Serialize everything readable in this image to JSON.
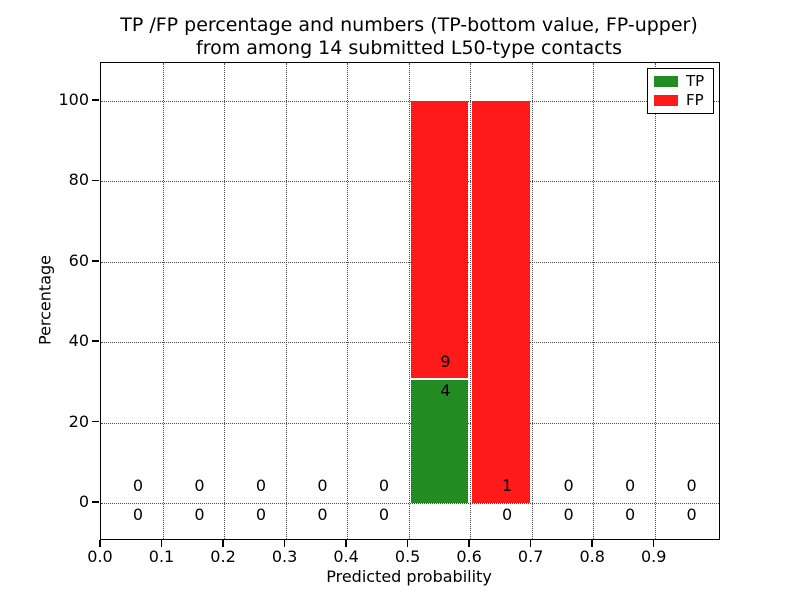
{
  "figure": {
    "title_line1": "TP /FP percentage and numbers (TP-bottom value, FP-upper)",
    "title_line2": "from among 14 submitted L50-type contacts",
    "xlabel": "Predicted probability",
    "ylabel": "Percentage"
  },
  "chart_data": {
    "type": "bar",
    "stacked": true,
    "title": "TP /FP percentage and numbers (TP-bottom value, FP-upper) from among 14 submitted L50-type contacts",
    "xlabel": "Predicted probability",
    "ylabel": "Percentage",
    "total_contacts": 14,
    "xlim": [
      0,
      1.0045
    ],
    "ylim": [
      -9,
      109.5
    ],
    "grid": "dotted",
    "legend_position": "upper right",
    "xticks": {
      "values": [
        0.0,
        0.1,
        0.2,
        0.3,
        0.4,
        0.5,
        0.6,
        0.7,
        0.8,
        0.9
      ],
      "labels": [
        "0.0",
        "0.1",
        "0.2",
        "0.3",
        "0.4",
        "0.5",
        "0.6",
        "0.7",
        "0.8",
        "0.9"
      ]
    },
    "yticks": {
      "values": [
        0,
        20,
        40,
        60,
        80,
        100
      ],
      "labels": [
        "0",
        "20",
        "40",
        "60",
        "80",
        "100"
      ]
    },
    "bin_width": 0.1,
    "bins": [
      {
        "range": [
          0.0,
          0.1
        ],
        "tp_count": 0,
        "fp_count": 0,
        "tp_pct": 0,
        "fp_pct": 0
      },
      {
        "range": [
          0.1,
          0.2
        ],
        "tp_count": 0,
        "fp_count": 0,
        "tp_pct": 0,
        "fp_pct": 0
      },
      {
        "range": [
          0.2,
          0.3
        ],
        "tp_count": 0,
        "fp_count": 0,
        "tp_pct": 0,
        "fp_pct": 0
      },
      {
        "range": [
          0.3,
          0.4
        ],
        "tp_count": 0,
        "fp_count": 0,
        "tp_pct": 0,
        "fp_pct": 0
      },
      {
        "range": [
          0.4,
          0.5
        ],
        "tp_count": 0,
        "fp_count": 0,
        "tp_pct": 0,
        "fp_pct": 0
      },
      {
        "range": [
          0.5,
          0.6
        ],
        "tp_count": 4,
        "fp_count": 9,
        "tp_pct": 30.77,
        "fp_pct": 69.23
      },
      {
        "range": [
          0.6,
          0.7
        ],
        "tp_count": 0,
        "fp_count": 1,
        "tp_pct": 0,
        "fp_pct": 100
      },
      {
        "range": [
          0.7,
          0.8
        ],
        "tp_count": 0,
        "fp_count": 0,
        "tp_pct": 0,
        "fp_pct": 0
      },
      {
        "range": [
          0.8,
          0.9
        ],
        "tp_count": 0,
        "fp_count": 0,
        "tp_pct": 0,
        "fp_pct": 0
      },
      {
        "range": [
          0.9,
          1.0
        ],
        "tp_count": 0,
        "fp_count": 0,
        "tp_pct": 0,
        "fp_pct": 0
      }
    ],
    "series": [
      {
        "name": "TP",
        "color": "#228B22",
        "pct": [
          0,
          0,
          0,
          0,
          0,
          30.77,
          0,
          0,
          0,
          0
        ]
      },
      {
        "name": "FP",
        "color": "#FF1A1A",
        "pct": [
          0,
          0,
          0,
          0,
          0,
          69.23,
          100,
          0,
          0,
          0
        ]
      }
    ],
    "legend": {
      "entries": [
        {
          "label": "TP",
          "color": "#228B22"
        },
        {
          "label": "FP",
          "color": "#FF1A1A"
        }
      ]
    },
    "annotation_x_offset_from_bin_left": 0.06
  }
}
